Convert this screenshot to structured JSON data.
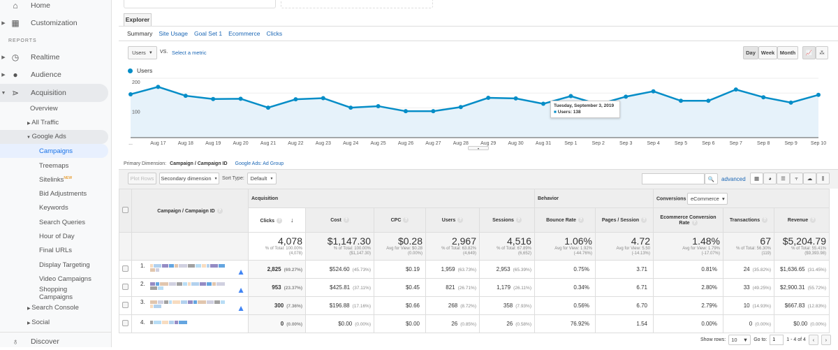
{
  "sidebar": {
    "items": [
      {
        "label": "Home",
        "icon": "home-icon"
      },
      {
        "label": "Customization",
        "icon": "dashboard-grid-icon"
      },
      {
        "label": "Realtime",
        "icon": "clock-icon"
      },
      {
        "label": "Audience",
        "icon": "person-icon"
      },
      {
        "label": "Acquisition",
        "icon": "acquisition-icon"
      },
      {
        "label": "Discover",
        "icon": "lightbulb-icon"
      }
    ],
    "section_label": "REPORTS",
    "acquisition_sub": [
      "Overview",
      "All Traffic",
      "Google Ads",
      "Search Console",
      "Social"
    ],
    "google_ads_sub": [
      "Campaigns",
      "Treemaps",
      "Sitelinks",
      "Bid Adjustments",
      "Keywords",
      "Search Queries",
      "Hour of Day",
      "Final URLs",
      "Display Targeting",
      "Video Campaigns",
      "Shopping Campaigns"
    ],
    "new_badge": "NEW"
  },
  "explorer": {
    "tab": "Explorer",
    "subtabs": [
      "Summary",
      "Site Usage",
      "Goal Set 1",
      "Ecommerce",
      "Clicks"
    ],
    "metric_select": "Users",
    "vs": "VS.",
    "select_metric": "Select a metric",
    "periods": [
      "Day",
      "Week",
      "Month"
    ],
    "active_period": "Day"
  },
  "chart_data": {
    "type": "area",
    "legend": "Users",
    "series": [
      {
        "name": "Users",
        "values": [
          146,
          171,
          141,
          130,
          131,
          101,
          129,
          133,
          101,
          106,
          89,
          89,
          103,
          134,
          132,
          114,
          140,
          112,
          138,
          156,
          124,
          124,
          162,
          136,
          118,
          144
        ]
      }
    ],
    "categories": [
      "Aug 16",
      "Aug 17",
      "Aug 18",
      "Aug 19",
      "Aug 20",
      "Aug 21",
      "Aug 22",
      "Aug 23",
      "Aug 24",
      "Aug 25",
      "Aug 26",
      "Aug 27",
      "Aug 28",
      "Aug 29",
      "Aug 30",
      "Aug 31",
      "Sep 1",
      "Sep 2",
      "Sep 3",
      "Sep 4",
      "Sep 5",
      "Sep 6",
      "Sep 7",
      "Sep 8",
      "Sep 9",
      "Sep 10"
    ],
    "tick_labels": [
      "...",
      "Aug 17",
      "Aug 18",
      "Aug 19",
      "Aug 20",
      "Aug 21",
      "Aug 22",
      "Aug 23",
      "Aug 24",
      "Aug 25",
      "Aug 26",
      "Aug 27",
      "Aug 28",
      "Aug 29",
      "Aug 30",
      "Aug 31",
      "Sep 1",
      "Sep 2",
      "Sep 3",
      "Sep 4",
      "Sep 5",
      "Sep 6",
      "Sep 7",
      "Sep 8",
      "Sep 9",
      "Sep 10"
    ],
    "y_ticks": [
      "200",
      "100"
    ],
    "ylim": [
      0,
      200
    ],
    "color": "#058dc7",
    "tooltip": {
      "title": "Tuesday, September 3, 2019",
      "text": "Users: 138",
      "index": 18
    }
  },
  "dimension": {
    "label": "Primary Dimension:",
    "active": "Campaign / Campaign ID",
    "other": "Google Ads: Ad Group"
  },
  "toolbar": {
    "plot_rows": "Plot Rows",
    "secondary": "Secondary dimension",
    "sort_label": "Sort Type:",
    "sort_value": "Default",
    "advanced": "advanced",
    "search_placeholder": ""
  },
  "table": {
    "dim_header": "Campaign / Campaign ID",
    "groups": {
      "acq": "Acquisition",
      "beh": "Behavior",
      "conv": "Conversions",
      "conv_select": "eCommerce"
    },
    "columns": [
      "Clicks",
      "Cost",
      "CPC",
      "Users",
      "Sessions",
      "Bounce Rate",
      "Pages / Session",
      "Ecommerce Conversion Rate",
      "Transactions",
      "Revenue"
    ],
    "totals": [
      {
        "v": "4,078",
        "a": "% of Total: 100.00%",
        "b": "(4,078)"
      },
      {
        "v": "$1,147.30",
        "a": "% of Total: 100.00%",
        "b": "($1,147.30)"
      },
      {
        "v": "$0.28",
        "a": "Avg for View: $0.28",
        "b": "(0.00%)"
      },
      {
        "v": "2,967",
        "a": "% of Total: 63.82%",
        "b": "(4,649)"
      },
      {
        "v": "4,516",
        "a": "% of Total: 67.89%",
        "b": "(6,652)"
      },
      {
        "v": "1.06%",
        "a": "Avg for View: 1.92%",
        "b": "(-44.76%)"
      },
      {
        "v": "4.72",
        "a": "Avg for View: 5.50",
        "b": "(-14.13%)"
      },
      {
        "v": "1.48%",
        "a": "Avg for View: 1.79%",
        "b": "(-17.07%)"
      },
      {
        "v": "67",
        "a": "% of Total: 56.30%",
        "b": "(119)"
      },
      {
        "v": "$5,204.79",
        "a": "% of Total: 55.41%",
        "b": "($9,393.98)"
      }
    ],
    "rows": [
      {
        "n": "1.",
        "ads": true,
        "cells": [
          [
            "2,825",
            "(69.27%)"
          ],
          [
            "$524.60",
            "(45.73%)"
          ],
          [
            "$0.19",
            ""
          ],
          [
            "1,959",
            "(63.73%)"
          ],
          [
            "2,953",
            "(65.39%)"
          ],
          [
            "0.75%",
            ""
          ],
          [
            "3.71",
            ""
          ],
          [
            "0.81%",
            ""
          ],
          [
            "24",
            "(35.82%)"
          ],
          [
            "$1,636.65",
            "(31.45%)"
          ]
        ]
      },
      {
        "n": "2.",
        "ads": true,
        "cells": [
          [
            "953",
            "(23.37%)"
          ],
          [
            "$425.81",
            "(37.11%)"
          ],
          [
            "$0.45",
            ""
          ],
          [
            "821",
            "(26.71%)"
          ],
          [
            "1,179",
            "(26.11%)"
          ],
          [
            "0.34%",
            ""
          ],
          [
            "6.71",
            ""
          ],
          [
            "2.80%",
            ""
          ],
          [
            "33",
            "(49.25%)"
          ],
          [
            "$2,900.31",
            "(55.72%)"
          ]
        ]
      },
      {
        "n": "3.",
        "ads": true,
        "cells": [
          [
            "300",
            "(7.36%)"
          ],
          [
            "$196.88",
            "(17.16%)"
          ],
          [
            "$0.66",
            ""
          ],
          [
            "268",
            "(8.72%)"
          ],
          [
            "358",
            "(7.93%)"
          ],
          [
            "0.56%",
            ""
          ],
          [
            "6.70",
            ""
          ],
          [
            "2.79%",
            ""
          ],
          [
            "10",
            "(14.93%)"
          ],
          [
            "$667.83",
            "(12.83%)"
          ]
        ]
      },
      {
        "n": "4.",
        "ads": false,
        "cells": [
          [
            "0",
            "(0.00%)"
          ],
          [
            "$0.00",
            "(0.00%)"
          ],
          [
            "$0.00",
            ""
          ],
          [
            "26",
            "(0.85%)"
          ],
          [
            "26",
            "(0.58%)"
          ],
          [
            "76.92%",
            ""
          ],
          [
            "1.54",
            ""
          ],
          [
            "0.00%",
            ""
          ],
          [
            "0",
            "(0.00%)"
          ],
          [
            "$0.00",
            "(0.00%)"
          ]
        ]
      }
    ]
  },
  "pager": {
    "show_rows_label": "Show rows:",
    "rows": "10",
    "goto_label": "Go to:",
    "goto": "1",
    "range": "1 - 4 of 4"
  }
}
